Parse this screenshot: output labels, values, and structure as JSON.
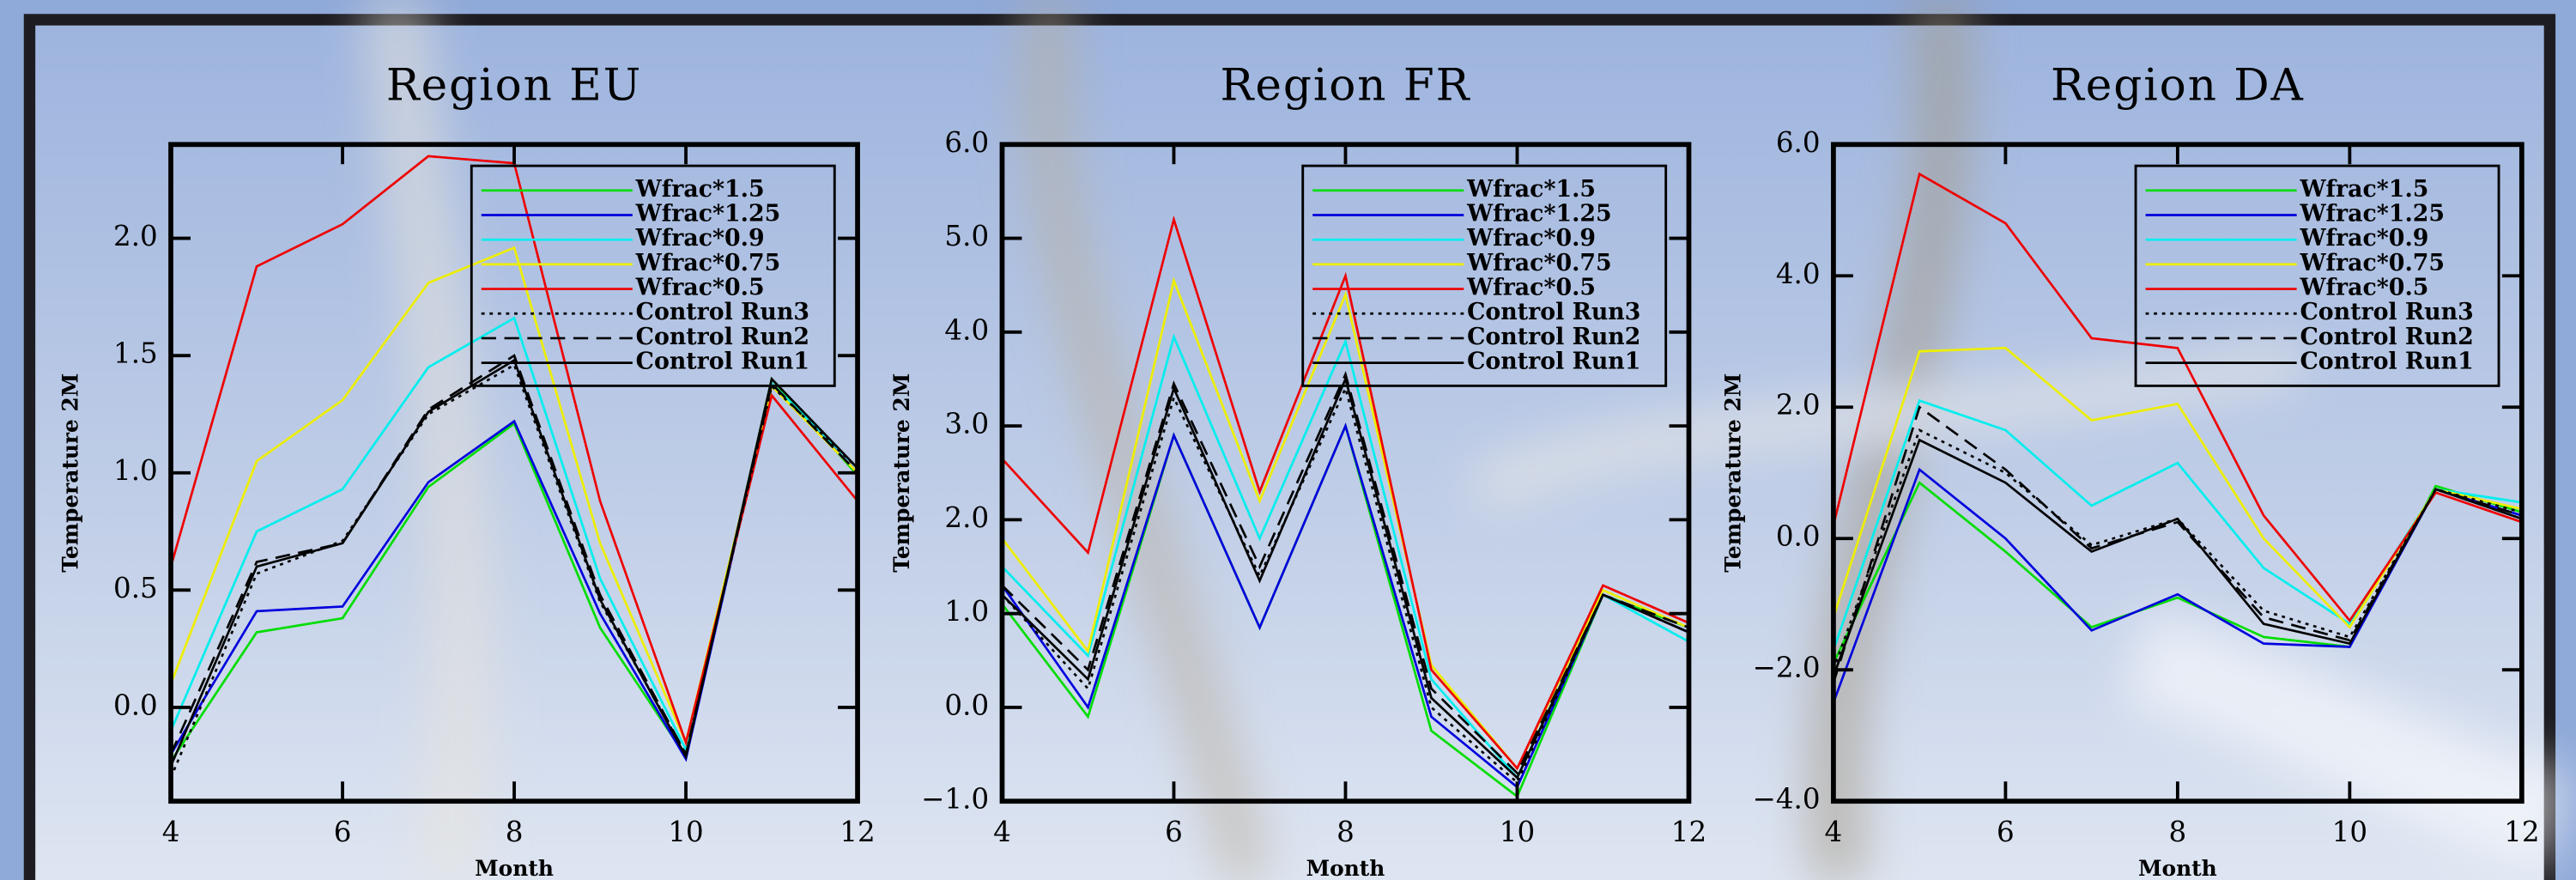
{
  "chart_data": [
    {
      "type": "line",
      "title": "Region EU",
      "xlabel": "Month",
      "ylabel": "Temperature 2M",
      "x": [
        4,
        5,
        6,
        7,
        8,
        9,
        10,
        11,
        12
      ],
      "xlim": [
        4,
        12
      ],
      "xticks": [
        4,
        6,
        8,
        10,
        12
      ],
      "ylim": [
        -0.4,
        2.4
      ],
      "yticks": [
        {
          "value": 0,
          "label": "0.0"
        },
        0.5,
        {
          "value": 1,
          "label": "1.0"
        },
        1.5,
        {
          "value": 2,
          "label": "2.0"
        }
      ],
      "legend": "upper right",
      "series": [
        {
          "name": "Wfrac*1.5",
          "color": "#00dd00",
          "linestyle": "solid",
          "values": [
            -0.23,
            0.32,
            0.38,
            0.94,
            1.21,
            0.34,
            -0.21,
            1.4,
            0.99
          ]
        },
        {
          "name": "Wfrac*1.25",
          "color": "#0000dd",
          "linestyle": "solid",
          "values": [
            -0.2,
            0.41,
            0.43,
            0.96,
            1.22,
            0.4,
            -0.22,
            1.38,
            1.0
          ]
        },
        {
          "name": "Wfrac*0.9",
          "color": "#00eeee",
          "linestyle": "solid",
          "values": [
            -0.1,
            0.75,
            0.93,
            1.45,
            1.66,
            0.55,
            -0.18,
            1.38,
            1.02
          ]
        },
        {
          "name": "Wfrac*0.75",
          "color": "#eeee00",
          "linestyle": "solid",
          "values": [
            0.1,
            1.05,
            1.31,
            1.81,
            1.96,
            0.7,
            -0.15,
            1.37,
            1.0
          ]
        },
        {
          "name": "Wfrac*0.5",
          "color": "#ee0000",
          "linestyle": "solid",
          "values": [
            0.6,
            1.88,
            2.06,
            2.35,
            2.32,
            0.88,
            -0.15,
            1.33,
            0.88
          ]
        },
        {
          "name": "Control Run3",
          "color": "#000000",
          "linestyle": "dotted",
          "values": [
            -0.3,
            0.57,
            0.71,
            1.25,
            1.46,
            0.45,
            -0.2,
            1.37,
            1.02
          ]
        },
        {
          "name": "Control Run2",
          "color": "#000000",
          "linestyle": "dashed",
          "values": [
            -0.2,
            0.62,
            0.7,
            1.27,
            1.5,
            0.48,
            -0.2,
            1.38,
            1.0
          ]
        },
        {
          "name": "Control Run1",
          "color": "#000000",
          "linestyle": "solid",
          "values": [
            -0.25,
            0.6,
            0.7,
            1.26,
            1.48,
            0.46,
            -0.21,
            1.4,
            1.02
          ]
        }
      ]
    },
    {
      "type": "line",
      "title": "Region FR",
      "xlabel": "Month",
      "ylabel": "Temperature 2M",
      "x": [
        4,
        5,
        6,
        7,
        8,
        9,
        10,
        11,
        12
      ],
      "xlim": [
        4,
        12
      ],
      "xticks": [
        4,
        6,
        8,
        10,
        12
      ],
      "ylim": [
        -1,
        6
      ],
      "yticks": [
        {
          "value": -1,
          "label": "−1.0"
        },
        {
          "value": 0,
          "label": "0.0"
        },
        {
          "value": 1,
          "label": "1.0"
        },
        {
          "value": 2,
          "label": "2.0"
        },
        {
          "value": 3,
          "label": "3.0"
        },
        {
          "value": 4,
          "label": "4.0"
        },
        {
          "value": 5,
          "label": "5.0"
        },
        {
          "value": 6,
          "label": "6.0"
        }
      ],
      "legend": "upper right",
      "series": [
        {
          "name": "Wfrac*1.5",
          "color": "#00dd00",
          "linestyle": "solid",
          "values": [
            1.1,
            -0.1,
            2.9,
            0.85,
            3.0,
            -0.25,
            -0.95,
            1.2,
            0.85
          ]
        },
        {
          "name": "Wfrac*1.25",
          "color": "#0000dd",
          "linestyle": "solid",
          "values": [
            1.3,
            0.0,
            2.9,
            0.85,
            3.0,
            -0.1,
            -0.85,
            1.2,
            0.8
          ]
        },
        {
          "name": "Wfrac*0.9",
          "color": "#00eeee",
          "linestyle": "solid",
          "values": [
            1.5,
            0.55,
            3.95,
            1.8,
            3.9,
            0.3,
            -0.75,
            1.2,
            0.7
          ]
        },
        {
          "name": "Wfrac*0.75",
          "color": "#eeee00",
          "linestyle": "solid",
          "values": [
            1.8,
            0.6,
            4.55,
            2.2,
            4.4,
            0.45,
            -0.65,
            1.25,
            0.85
          ]
        },
        {
          "name": "Wfrac*0.5",
          "color": "#ee0000",
          "linestyle": "solid",
          "values": [
            2.65,
            1.65,
            5.2,
            2.3,
            4.6,
            0.4,
            -0.65,
            1.3,
            0.9
          ]
        },
        {
          "name": "Control Run3",
          "color": "#000000",
          "linestyle": "dotted",
          "values": [
            1.2,
            0.2,
            3.3,
            1.4,
            3.4,
            0.0,
            -0.8,
            1.2,
            0.8
          ]
        },
        {
          "name": "Control Run2",
          "color": "#000000",
          "linestyle": "dashed",
          "values": [
            1.3,
            0.4,
            3.45,
            1.5,
            3.55,
            0.2,
            -0.7,
            1.2,
            0.85
          ]
        },
        {
          "name": "Control Run1",
          "color": "#000000",
          "linestyle": "solid",
          "values": [
            1.2,
            0.3,
            3.4,
            1.35,
            3.5,
            0.1,
            -0.75,
            1.2,
            0.8
          ]
        }
      ]
    },
    {
      "type": "line",
      "title": "Region DA",
      "xlabel": "Month",
      "ylabel": "Temperature 2M",
      "x": [
        4,
        5,
        6,
        7,
        8,
        9,
        10,
        11,
        12
      ],
      "xlim": [
        4,
        12
      ],
      "xticks": [
        4,
        6,
        8,
        10,
        12
      ],
      "ylim": [
        -4,
        6
      ],
      "yticks": [
        {
          "value": -4,
          "label": "−4.0"
        },
        {
          "value": -2,
          "label": "−2.0"
        },
        {
          "value": 0,
          "label": "0.0"
        },
        {
          "value": 2,
          "label": "2.0"
        },
        {
          "value": 4,
          "label": "4.0"
        },
        {
          "value": 6,
          "label": "6.0"
        }
      ],
      "legend": "upper right",
      "series": [
        {
          "name": "Wfrac*1.5",
          "color": "#00dd00",
          "linestyle": "solid",
          "values": [
            -1.9,
            0.85,
            -0.2,
            -1.35,
            -0.9,
            -1.5,
            -1.65,
            0.8,
            0.4
          ]
        },
        {
          "name": "Wfrac*1.25",
          "color": "#0000dd",
          "linestyle": "solid",
          "values": [
            -2.5,
            1.05,
            0.0,
            -1.4,
            -0.85,
            -1.6,
            -1.65,
            0.75,
            0.35
          ]
        },
        {
          "name": "Wfrac*0.9",
          "color": "#00eeee",
          "linestyle": "solid",
          "values": [
            -1.7,
            2.1,
            1.65,
            0.5,
            1.15,
            -0.45,
            -1.3,
            0.75,
            0.55
          ]
        },
        {
          "name": "Wfrac*0.75",
          "color": "#eeee00",
          "linestyle": "solid",
          "values": [
            -1.2,
            2.85,
            2.9,
            1.8,
            2.05,
            0.0,
            -1.35,
            0.75,
            0.45
          ]
        },
        {
          "name": "Wfrac*0.5",
          "color": "#ee0000",
          "linestyle": "solid",
          "values": [
            0.2,
            5.55,
            4.8,
            3.05,
            2.9,
            0.35,
            -1.25,
            0.7,
            0.25
          ]
        },
        {
          "name": "Control Run3",
          "color": "#000000",
          "linestyle": "dotted",
          "values": [
            -2.0,
            1.65,
            1.0,
            -0.1,
            0.3,
            -1.1,
            -1.5,
            0.75,
            0.4
          ]
        },
        {
          "name": "Control Run2",
          "color": "#000000",
          "linestyle": "dashed",
          "values": [
            -2.2,
            2.0,
            1.05,
            -0.15,
            0.25,
            -1.2,
            -1.55,
            0.75,
            0.35
          ]
        },
        {
          "name": "Control Run1",
          "color": "#000000",
          "linestyle": "solid",
          "values": [
            -2.1,
            1.5,
            0.85,
            -0.2,
            0.3,
            -1.3,
            -1.6,
            0.75,
            0.3
          ]
        }
      ]
    }
  ]
}
